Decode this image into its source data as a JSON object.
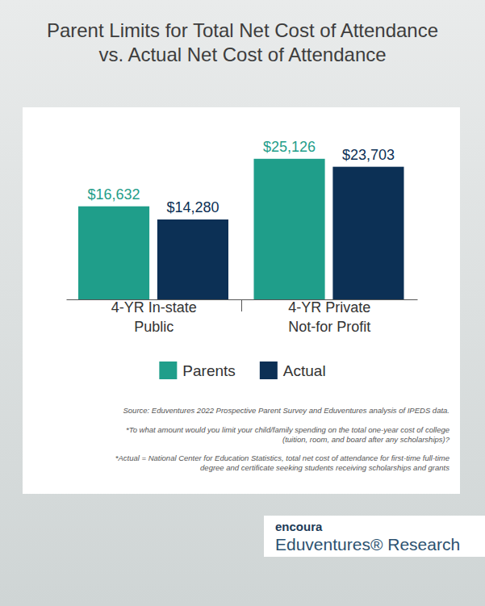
{
  "chart_data": {
    "type": "bar",
    "title": "Parent Limits for Total Net Cost of Attendance vs. Actual Net Cost of Attendance",
    "categories": [
      "4-YR In-state Public",
      "4-YR Private Not-for Profit"
    ],
    "series": [
      {
        "name": "Parents",
        "color": "#1f9e8a",
        "values": [
          16632,
          25126
        ],
        "value_labels": [
          "$16,632",
          "$25,126"
        ]
      },
      {
        "name": "Actual",
        "color": "#0c3055",
        "values": [
          14280,
          23703
        ],
        "value_labels": [
          "$14,280",
          "$23,703"
        ]
      }
    ],
    "ylim": [
      0,
      30000
    ],
    "tick_labels": "x",
    "data_labels": true,
    "grid": false,
    "legend": "bottom",
    "annotations": [
      "Source: Eduventures 2022 Prospective Parent Survey and Eduventures analysis of IPEDS data.",
      "*To what amount would you limit your child/family spending on the total one-year cost of college (tuition, room, and board after any scholarships)?",
      "*Actual = National Center for Education Statistics, total net cost of attendance for first-time full-time degree and certificate seeking students receiving scholarships and grants"
    ]
  },
  "logo": {
    "brand": "encoura",
    "name": "Eduventures® Research"
  }
}
